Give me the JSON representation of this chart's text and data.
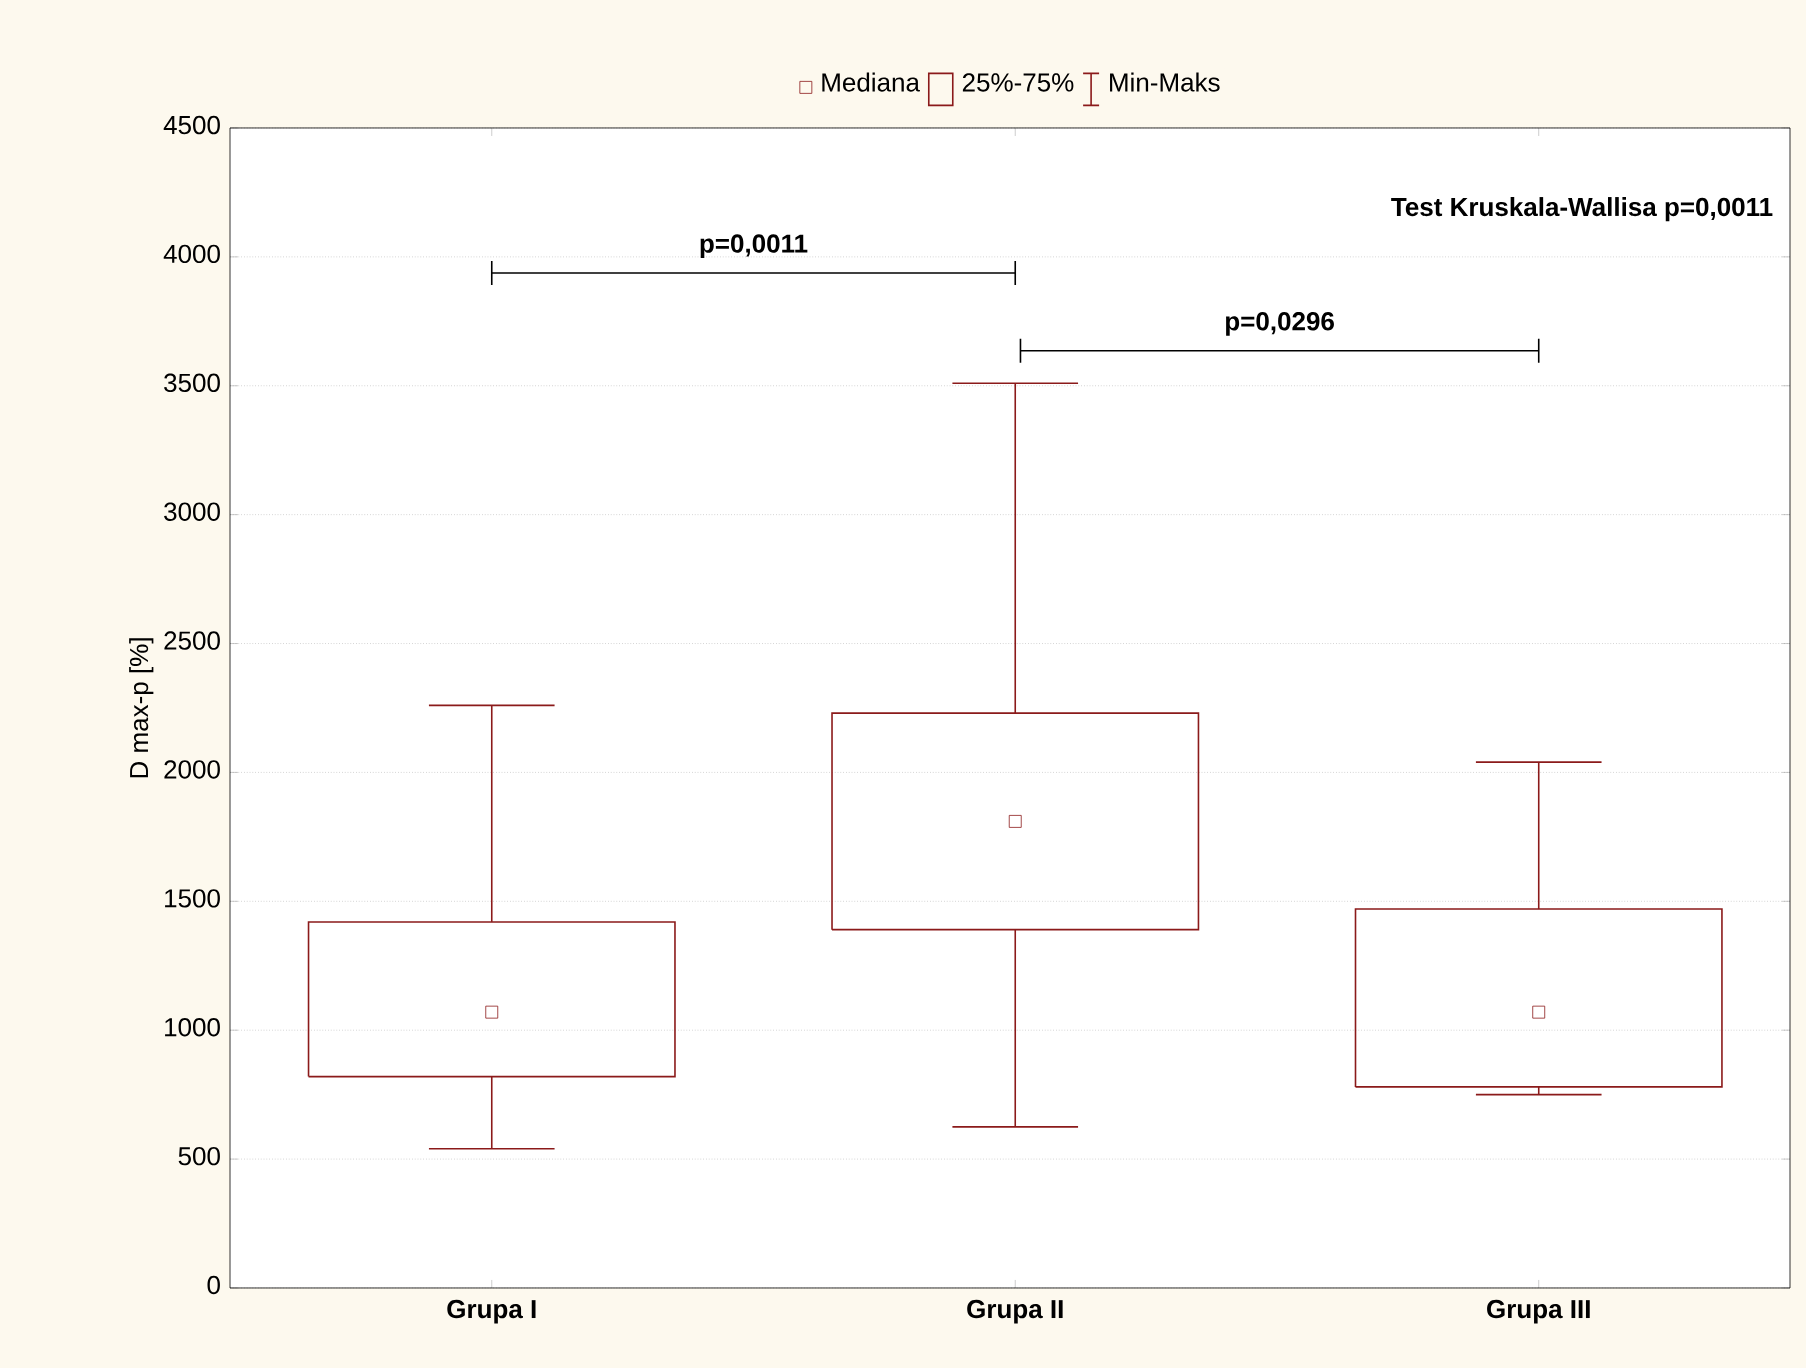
{
  "chart_data": {
    "type": "box",
    "ylabel": "D max-p  [%]",
    "categories": [
      "Grupa I",
      "Grupa II",
      "Grupa III"
    ],
    "color": "#8b1a1a",
    "boxes": [
      {
        "low": 540,
        "q1": 820,
        "median": 1070,
        "q3": 1420,
        "high": 2260
      },
      {
        "low": 625,
        "q1": 1390,
        "median": 1810,
        "q3": 2230,
        "high": 3510
      },
      {
        "low": 750,
        "q1": 780,
        "median": 1070,
        "q3": 1470,
        "high": 2040
      }
    ],
    "ylim": [
      0,
      4500
    ],
    "yticks": [
      0,
      500,
      1000,
      1500,
      2000,
      2500,
      3000,
      3500,
      4000,
      4500
    ],
    "grid": "y",
    "annotations": [
      "Mediana",
      "25%-75%",
      "Min-Maks",
      "Test Kruskala-Wallisa  p=0,0011",
      "p=0,0011",
      "p=0,0296"
    ]
  }
}
